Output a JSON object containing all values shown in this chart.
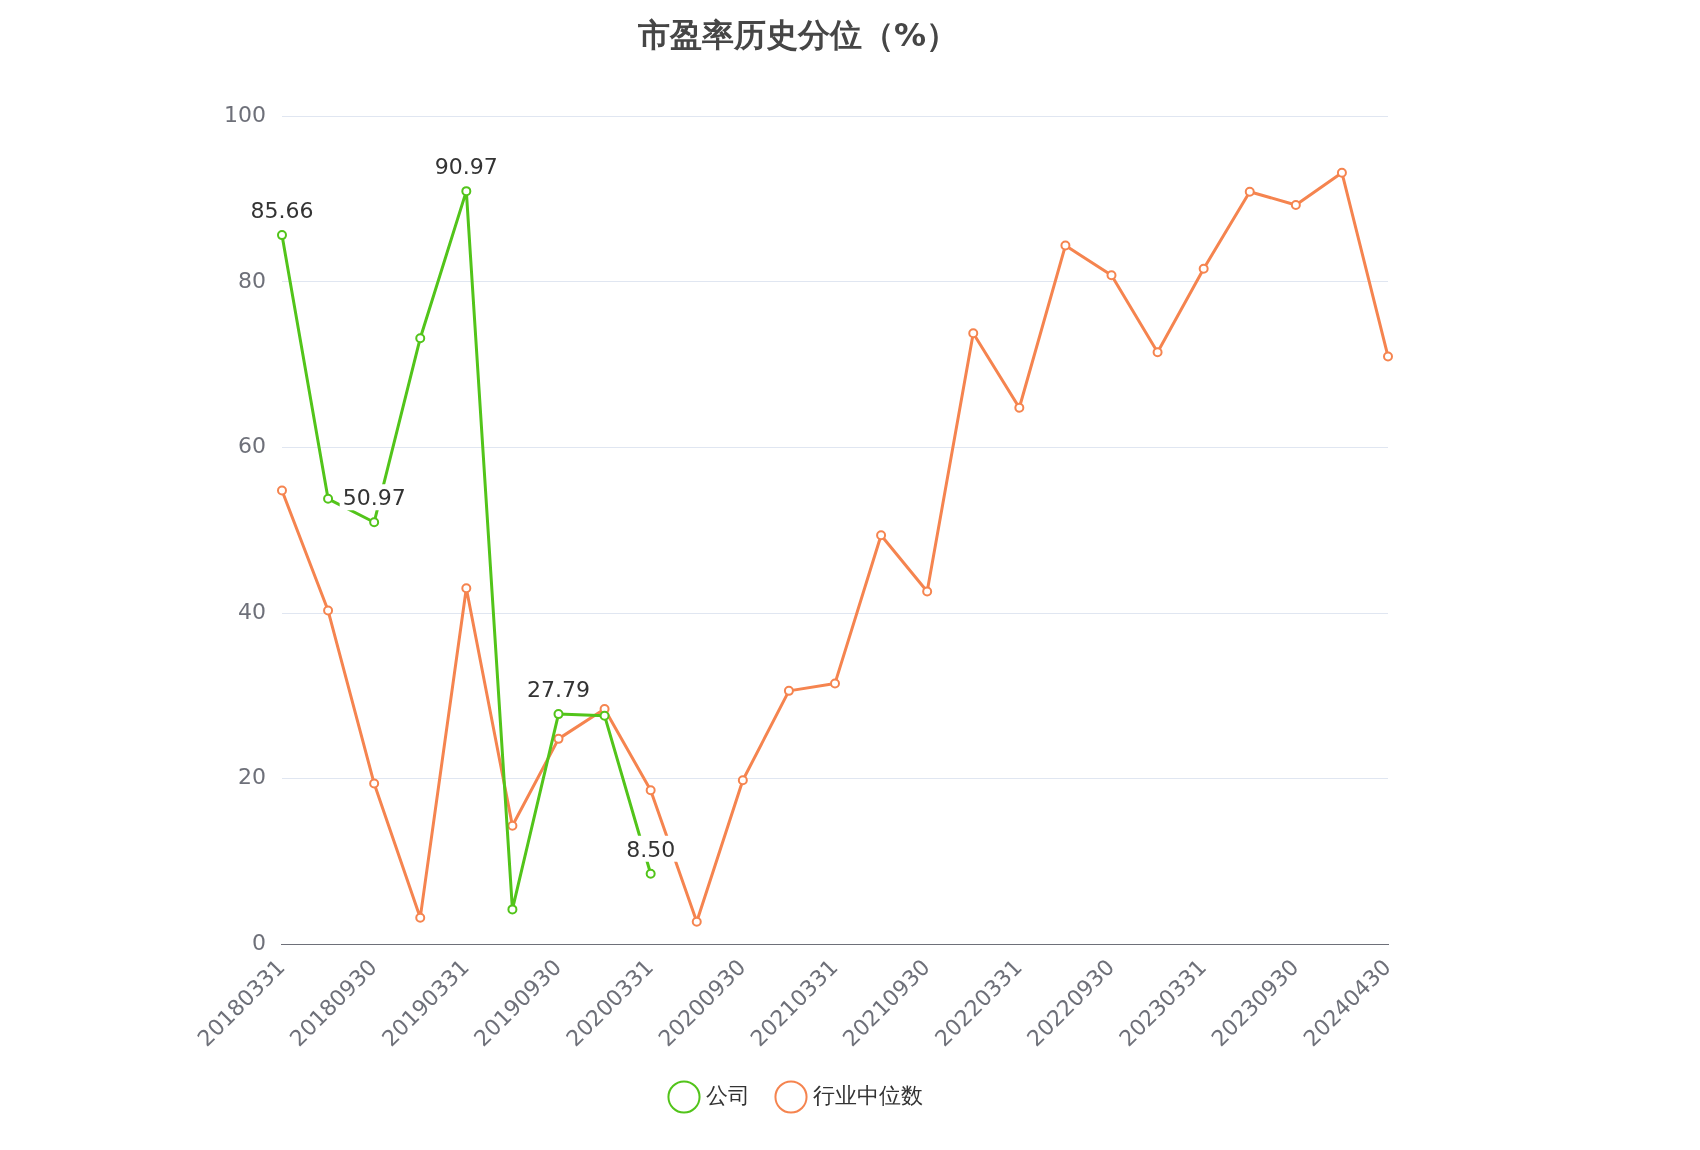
{
  "chart_data": {
    "type": "line",
    "title": "市盈率历史分位（%）",
    "categories": [
      "20180331",
      null,
      "20180930",
      null,
      "20190331",
      null,
      "20190930",
      null,
      "20200331",
      null,
      "20200930",
      null,
      "20210331",
      null,
      "20210930",
      null,
      "20220331",
      null,
      "20220930",
      null,
      "20230331",
      null,
      "20230930",
      null,
      "20240430"
    ],
    "series": [
      {
        "name": "公司",
        "color": "#52c41a",
        "values": [
          85.66,
          53.8,
          50.97,
          73.2,
          90.97,
          4.2,
          27.79,
          27.6,
          8.5,
          null,
          null,
          null,
          null,
          null,
          null,
          null,
          null,
          null,
          null,
          null,
          null,
          null,
          null,
          null,
          null
        ],
        "value_labels": [
          "85.66",
          null,
          "50.97",
          null,
          "90.97",
          null,
          "27.79",
          null,
          "8.50",
          null,
          null,
          null,
          null,
          null,
          null,
          null,
          null,
          null,
          null,
          null,
          null,
          null,
          null,
          null,
          null
        ]
      },
      {
        "name": "行业中位数",
        "color": "#f5844f",
        "values": [
          54.8,
          40.3,
          19.4,
          3.2,
          43.0,
          14.3,
          24.8,
          28.4,
          18.6,
          2.7,
          19.8,
          30.6,
          31.5,
          49.4,
          42.6,
          73.8,
          64.8,
          84.4,
          80.8,
          71.5,
          81.6,
          90.9,
          89.3,
          93.2,
          71.0
        ]
      }
    ],
    "ylim": [
      0,
      100
    ],
    "yticks": [
      0,
      20,
      40,
      60,
      80,
      100
    ],
    "grid": "y",
    "legend": "bottom",
    "marker": "circle",
    "line_style": "solid"
  }
}
